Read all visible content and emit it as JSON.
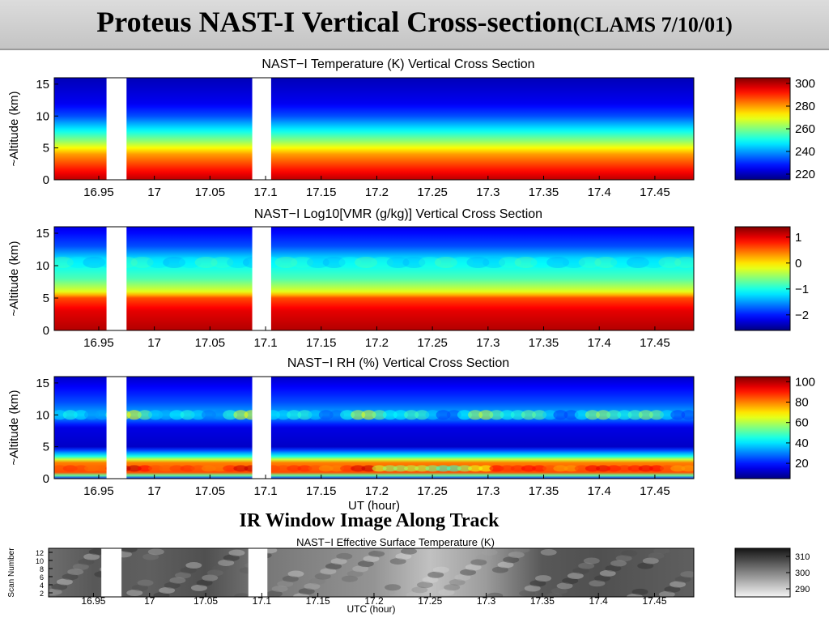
{
  "title": {
    "main": "Proteus NAST-I Vertical Cross-section",
    "sub": "(CLAMS 7/10/01)"
  },
  "ir_heading": "IR Window Image Along Track",
  "chart_data": [
    {
      "type": "heatmap",
      "title": "NAST−I Temperature (K) Vertical Cross Section",
      "ylabel": "~Altitude (km)",
      "xlabel": "",
      "xlim": [
        16.91,
        17.485
      ],
      "ylim": [
        0,
        16
      ],
      "x_ticks": [
        "16.95",
        "17",
        "17.05",
        "17.1",
        "17.15",
        "17.2",
        "17.25",
        "17.3",
        "17.35",
        "17.4",
        "17.45"
      ],
      "y_ticks": [
        "0",
        "5",
        "10",
        "15"
      ],
      "gaps": [
        [
          16.957,
          16.975
        ],
        [
          17.088,
          17.105
        ]
      ],
      "colorbar": {
        "ticks": [
          "300",
          "280",
          "260",
          "240",
          "220"
        ],
        "range": [
          215,
          305
        ]
      },
      "profile": [
        {
          "alt": 0,
          "value": 300
        },
        {
          "alt": 2,
          "value": 290
        },
        {
          "alt": 4,
          "value": 280
        },
        {
          "alt": 6,
          "value": 262
        },
        {
          "alt": 8,
          "value": 247
        },
        {
          "alt": 10,
          "value": 233
        },
        {
          "alt": 12,
          "value": 225
        },
        {
          "alt": 16,
          "value": 220
        }
      ]
    },
    {
      "type": "heatmap",
      "title": "NAST−I Log10[VMR (g/kg)] Vertical Cross Section",
      "ylabel": "~Altitude (km)",
      "xlabel": "",
      "xlim": [
        16.91,
        17.485
      ],
      "ylim": [
        0,
        16
      ],
      "x_ticks": [
        "16.95",
        "17",
        "17.05",
        "17.1",
        "17.15",
        "17.2",
        "17.25",
        "17.3",
        "17.35",
        "17.4",
        "17.45"
      ],
      "y_ticks": [
        "0",
        "5",
        "10",
        "15"
      ],
      "gaps": [
        [
          16.957,
          16.975
        ],
        [
          17.088,
          17.105
        ]
      ],
      "colorbar": {
        "ticks": [
          "1",
          "0",
          "−1",
          "−2"
        ],
        "range": [
          -2.6,
          1.4
        ]
      },
      "profile": [
        {
          "alt": 0,
          "value": 1.2
        },
        {
          "alt": 3,
          "value": 1.0
        },
        {
          "alt": 5,
          "value": 0.6
        },
        {
          "alt": 6,
          "value": -0.2
        },
        {
          "alt": 8,
          "value": -0.8
        },
        {
          "alt": 11,
          "value": -1.2
        },
        {
          "alt": 13,
          "value": -1.8
        },
        {
          "alt": 16,
          "value": -2.2
        }
      ]
    },
    {
      "type": "heatmap",
      "title": "NAST−I RH (%) Vertical Cross Section",
      "ylabel": "~Altitude (km)",
      "xlabel": "UT (hour)",
      "xlim": [
        16.91,
        17.485
      ],
      "ylim": [
        0,
        16
      ],
      "x_ticks": [
        "16.95",
        "17",
        "17.05",
        "17.1",
        "17.15",
        "17.2",
        "17.25",
        "17.3",
        "17.35",
        "17.4",
        "17.45"
      ],
      "y_ticks": [
        "0",
        "5",
        "10",
        "15"
      ],
      "gaps": [
        [
          16.957,
          16.975
        ],
        [
          17.088,
          17.105
        ]
      ],
      "colorbar": {
        "ticks": [
          "100",
          "80",
          "60",
          "40",
          "20"
        ],
        "range": [
          5,
          105
        ]
      },
      "profile": [
        {
          "alt": 0,
          "value": 20
        },
        {
          "alt": 1,
          "value": 85
        },
        {
          "alt": 2.5,
          "value": 80
        },
        {
          "alt": 3.5,
          "value": 45
        },
        {
          "alt": 5,
          "value": 12
        },
        {
          "alt": 8,
          "value": 15
        },
        {
          "alt": 10,
          "value": 35
        },
        {
          "alt": 12,
          "value": 25
        },
        {
          "alt": 16,
          "value": 12
        }
      ]
    },
    {
      "type": "heatmap",
      "title": "NAST−I Effective Surface Temperature (K)",
      "ylabel": "Scan Number",
      "xlabel": "UTC (hour)",
      "xlim": [
        16.91,
        17.485
      ],
      "ylim": [
        1,
        13
      ],
      "x_ticks": [
        "16.95",
        "17",
        "17.05",
        "17.1",
        "17.15",
        "17.2",
        "17.25",
        "17.3",
        "17.35",
        "17.4",
        "17.45"
      ],
      "y_ticks": [
        "2",
        "4",
        "6",
        "8",
        "10",
        "12"
      ],
      "gaps": [
        [
          16.957,
          16.975
        ],
        [
          17.088,
          17.105
        ]
      ],
      "colorbar": {
        "ticks": [
          "310",
          "300",
          "290"
        ],
        "range": [
          285,
          315
        ]
      },
      "along_track": [
        {
          "x": 16.91,
          "value": 303
        },
        {
          "x": 16.95,
          "value": 306
        },
        {
          "x": 17.0,
          "value": 305
        },
        {
          "x": 17.05,
          "value": 307
        },
        {
          "x": 17.1,
          "value": 302
        },
        {
          "x": 17.15,
          "value": 300
        },
        {
          "x": 17.2,
          "value": 298
        },
        {
          "x": 17.25,
          "value": 292
        },
        {
          "x": 17.3,
          "value": 297
        },
        {
          "x": 17.35,
          "value": 306
        },
        {
          "x": 17.4,
          "value": 307
        },
        {
          "x": 17.485,
          "value": 305
        }
      ]
    }
  ]
}
